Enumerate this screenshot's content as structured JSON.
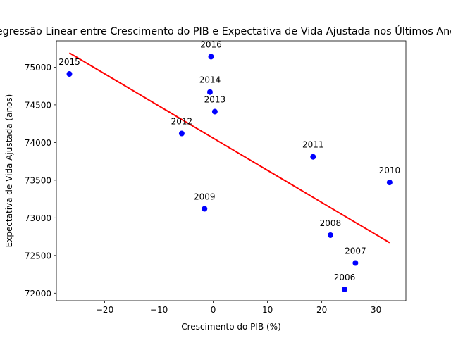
{
  "chart_data": {
    "type": "scatter",
    "title": "Regressão Linear entre Crescimento do PIB e Expectativa de Vida Ajustada nos Últimos Anos",
    "xlabel": "Crescimento do PIB (%)",
    "ylabel": "Expectativa de Vida Ajustada (anos)",
    "xlim": [
      -28.9,
      35.5
    ],
    "ylim": [
      71900,
      75350
    ],
    "xticks": [
      -20,
      -10,
      0,
      10,
      20,
      30
    ],
    "yticks": [
      72000,
      72500,
      73000,
      73500,
      74000,
      74500,
      75000
    ],
    "xtick_labels": [
      "−20",
      "−10",
      "0",
      "10",
      "20",
      "30"
    ],
    "ytick_labels": [
      "72000",
      "72500",
      "73000",
      "73500",
      "74000",
      "74500",
      "75000"
    ],
    "grid": false,
    "series": [
      {
        "type": "scatter",
        "color": "#0000ff",
        "points": [
          {
            "label": "2006",
            "x": 24.2,
            "y": 72050
          },
          {
            "label": "2007",
            "x": 26.2,
            "y": 72400
          },
          {
            "label": "2008",
            "x": 21.6,
            "y": 72770
          },
          {
            "label": "2009",
            "x": -1.6,
            "y": 73120
          },
          {
            "label": "2010",
            "x": 32.5,
            "y": 73470
          },
          {
            "label": "2011",
            "x": 18.4,
            "y": 73810
          },
          {
            "label": "2012",
            "x": -5.8,
            "y": 74120
          },
          {
            "label": "2013",
            "x": 0.3,
            "y": 74410
          },
          {
            "label": "2014",
            "x": -0.6,
            "y": 74670
          },
          {
            "label": "2015",
            "x": -26.5,
            "y": 74910
          },
          {
            "label": "2016",
            "x": -0.4,
            "y": 75140
          }
        ]
      },
      {
        "type": "line",
        "color": "#ff0000",
        "x": [
          -26.5,
          32.5
        ],
        "y": [
          75190,
          72670
        ]
      }
    ]
  }
}
